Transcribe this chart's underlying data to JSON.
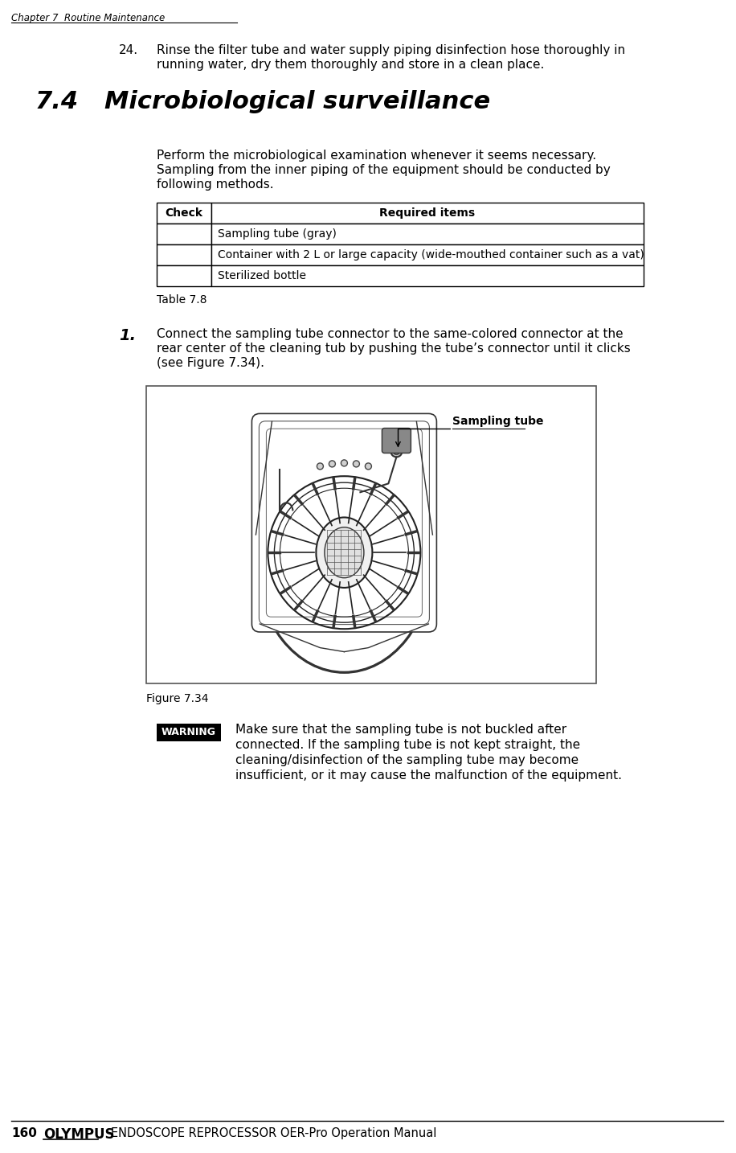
{
  "page_width": 9.16,
  "page_height": 14.34,
  "bg_color": "#ffffff",
  "header_text": "Chapter 7  Routine Maintenance",
  "item24_number": "24.",
  "item24_line1": "Rinse the filter tube and water supply piping disinfection hose thoroughly in",
  "item24_line2": "running water, dry them thoroughly and store in a clean place.",
  "section_number": "7.4",
  "section_title": "Microbiological surveillance",
  "para_line1": "Perform the microbiological examination whenever it seems necessary.",
  "para_line2": "Sampling from the inner piping of the equipment should be conducted by",
  "para_line3": "following methods.",
  "table_header_col1": "Check",
  "table_header_col2": "Required items",
  "table_rows": [
    "Sampling tube (gray)",
    "Container with 2 L or large capacity (wide-mouthed container such as a vat)",
    "Sterilized bottle"
  ],
  "table_caption": "Table 7.8",
  "step1_number": "1.",
  "step1_line1": "Connect the sampling tube connector to the same-colored connector at the",
  "step1_line2": "rear center of the cleaning tub by pushing the tube’s connector until it clicks",
  "step1_line3": "(see Figure 7.34).",
  "figure_label": "Sampling tube",
  "figure_caption": "Figure 7.34",
  "warning_label": "WARNING",
  "warning_line1": "Make sure that the sampling tube is not buckled after",
  "warning_line2": "connected. If the sampling tube is not kept straight, the",
  "warning_line3": "cleaning/disinfection of the sampling tube may become",
  "warning_line4": "insufficient, or it may cause the malfunction of the equipment.",
  "footer_page": "160",
  "footer_brand": "OLYMPUS",
  "footer_manual": "ENDOSCOPE REPROCESSOR OER-Pro Operation Manual",
  "lc": "#000000",
  "warn_bg": "#000000",
  "warn_fg": "#ffffff"
}
